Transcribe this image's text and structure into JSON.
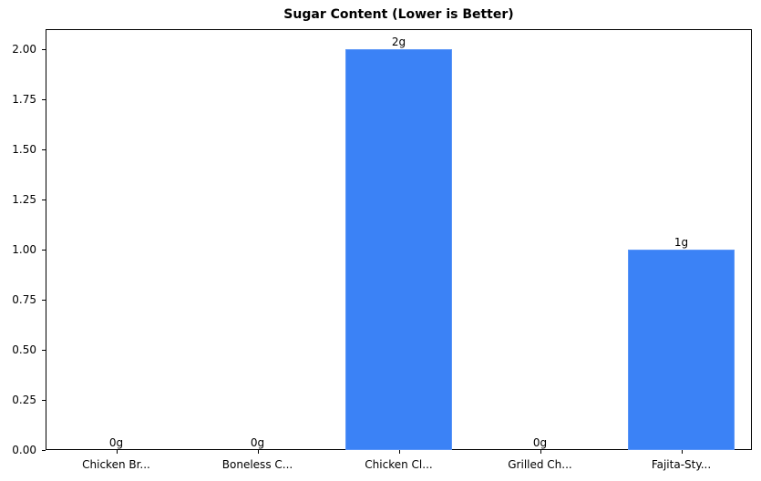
{
  "chart_data": {
    "type": "bar",
    "title": "Sugar Content (Lower is Better)",
    "xlabel": "",
    "ylabel": "",
    "categories": [
      "Chicken Br...",
      "Boneless C...",
      "Chicken Cl...",
      "Grilled Ch...",
      "Fajita-Sty..."
    ],
    "values": [
      0,
      0,
      2,
      0,
      1
    ],
    "value_labels": [
      "0g",
      "0g",
      "2g",
      "0g",
      "1g"
    ],
    "ylim": [
      0,
      2.1
    ],
    "yticks": [
      "0.00",
      "0.25",
      "0.50",
      "0.75",
      "1.00",
      "1.25",
      "1.50",
      "1.75",
      "2.00"
    ],
    "grid": false,
    "legend": null,
    "bar_color": "#3b82f6"
  }
}
